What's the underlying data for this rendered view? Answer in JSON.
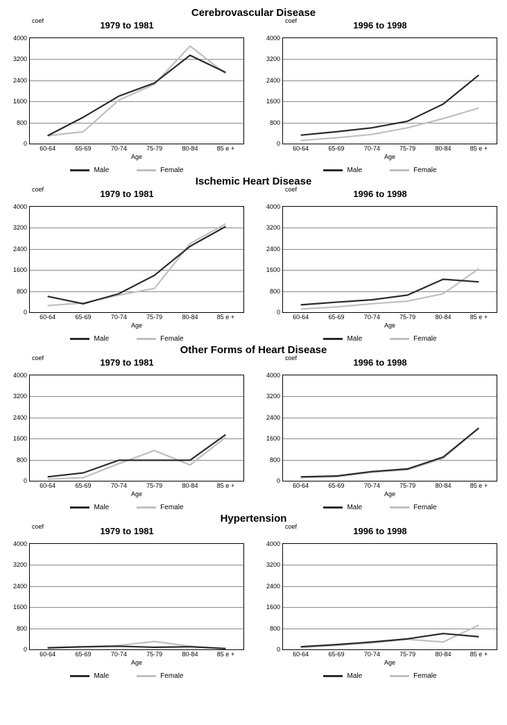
{
  "global": {
    "x_categories": [
      "60-64",
      "65-69",
      "70-74",
      "75-79",
      "80-84",
      "85 e +"
    ],
    "x_axis_title": "Age",
    "y_axis_title": "coef",
    "ylim": [
      0,
      4000
    ],
    "ytick_step": 800,
    "yticks": [
      0,
      800,
      1600,
      2400,
      3200,
      4000
    ],
    "grid_color": "#888888",
    "border_color": "#000000",
    "background_color": "#ffffff",
    "line_width": 2.2,
    "legend": {
      "male_label": "Male",
      "female_label": "Female",
      "male_color": "#2a2a2a",
      "female_color": "#bfbfbf"
    }
  },
  "sections": [
    {
      "title": "Cerebrovascular Disease",
      "type": "line",
      "panels": [
        {
          "title": "1979 to 1981",
          "series": {
            "male": [
              300,
              1000,
              1800,
              2300,
              3350,
              2700
            ],
            "female": [
              300,
              450,
              1650,
              2250,
              3700,
              2650
            ]
          }
        },
        {
          "title": "1996 to 1998",
          "series": {
            "male": [
              320,
              450,
              600,
              850,
              1500,
              2600
            ],
            "female": [
              120,
              220,
              350,
              600,
              950,
              1350
            ]
          }
        }
      ]
    },
    {
      "title": "Ischemic Heart Disease",
      "type": "line",
      "panels": [
        {
          "title": "1979 to 1981",
          "series": {
            "male": [
              600,
              320,
              700,
              1400,
              2500,
              3250
            ],
            "female": [
              250,
              350,
              650,
              900,
              2600,
              3350
            ]
          }
        },
        {
          "title": "1996 to 1998",
          "series": {
            "male": [
              280,
              380,
              470,
              650,
              1250,
              1150
            ],
            "female": [
              120,
              200,
              320,
              420,
              700,
              1650
            ]
          }
        }
      ]
    },
    {
      "title": "Other Forms of Heart Disease",
      "type": "line",
      "panels": [
        {
          "title": "1979 to 1981",
          "series": {
            "male": [
              150,
              300,
              780,
              780,
              780,
              1750
            ],
            "female": [
              60,
              120,
              650,
              1150,
              600,
              1650
            ]
          }
        },
        {
          "title": "1996 to 1998",
          "series": {
            "male": [
              150,
              180,
              350,
              450,
              900,
              2000
            ],
            "female": [
              120,
              160,
              320,
              420,
              850,
              2000
            ]
          }
        }
      ]
    },
    {
      "title": "Hypertension",
      "type": "line",
      "panels": [
        {
          "title": "1979 to 1981",
          "series": {
            "male": [
              60,
              100,
              120,
              80,
              100,
              30
            ],
            "female": [
              40,
              90,
              150,
              300,
              120,
              30
            ]
          }
        },
        {
          "title": "1996 to 1998",
          "series": {
            "male": [
              100,
              180,
              280,
              400,
              600,
              480
            ],
            "female": [
              80,
              150,
              250,
              380,
              280,
              920
            ]
          }
        }
      ]
    }
  ]
}
